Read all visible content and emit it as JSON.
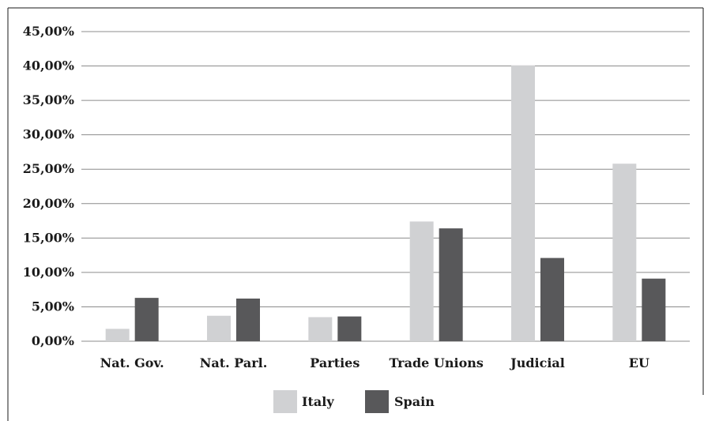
{
  "chart_data": {
    "type": "bar",
    "categories": [
      "Nat. Gov.",
      "Nat. Parl.",
      "Parties",
      "Trade Unions",
      "Judicial",
      "EU"
    ],
    "series": [
      {
        "name": "Italy",
        "color": "#d0d1d3",
        "values": [
          1.8,
          3.7,
          3.5,
          17.4,
          40.1,
          25.8
        ]
      },
      {
        "name": "Spain",
        "color": "#58585a",
        "values": [
          6.3,
          6.2,
          3.6,
          16.4,
          12.1,
          9.1
        ]
      }
    ],
    "yticks": [
      "0,00%",
      "5,00%",
      "10,00%",
      "15,00%",
      "20,00%",
      "25,00%",
      "30,00%",
      "35,00%",
      "40,00%",
      "45,00%"
    ],
    "ylim": [
      0,
      45
    ],
    "grid": true,
    "legend_position": "bottom"
  }
}
